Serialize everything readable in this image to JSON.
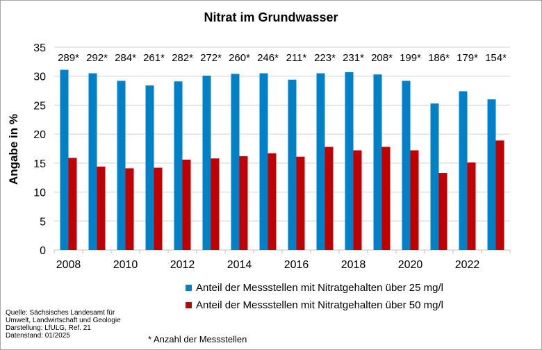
{
  "chart_data": {
    "type": "bar",
    "title": "Nitrat im Grundwasser",
    "ylabel": "Angabe in %",
    "xlabel": "",
    "ylim": [
      0,
      35
    ],
    "yticks": [
      0,
      5,
      10,
      15,
      20,
      25,
      30,
      35
    ],
    "grid": true,
    "legend_position": "bottom",
    "categories": [
      "2008",
      "2009",
      "2010",
      "2011",
      "2012",
      "2013",
      "2014",
      "2015",
      "2016",
      "2017",
      "2018",
      "2019",
      "2020",
      "2021",
      "2022",
      "2023"
    ],
    "xtick_labels": [
      "2008",
      "",
      "2010",
      "",
      "2012",
      "",
      "2014",
      "",
      "2016",
      "",
      "2018",
      "",
      "2020",
      "",
      "2022",
      ""
    ],
    "counts": [
      "289*",
      "292*",
      "284*",
      "261*",
      "282*",
      "272*",
      "260*",
      "246*",
      "211*",
      "223*",
      "231*",
      "208*",
      "199*",
      "186*",
      "179*",
      "154*"
    ],
    "series": [
      {
        "name": "Anteil der Messstellen mit Nitratgehalten über 25 mg/l",
        "color": "#0080c6",
        "values": [
          31.1,
          30.5,
          29.2,
          28.4,
          29.1,
          30.1,
          30.4,
          30.5,
          29.4,
          30.5,
          30.7,
          30.3,
          29.2,
          25.3,
          27.4,
          26.0
        ]
      },
      {
        "name": "Anteil der Messstellen mit Nitratgehalten über 50 mg/l",
        "color": "#c00000",
        "values": [
          15.9,
          14.4,
          14.1,
          14.2,
          15.6,
          15.8,
          16.2,
          16.7,
          16.1,
          17.8,
          17.2,
          17.8,
          17.2,
          13.3,
          15.1,
          18.9
        ]
      }
    ]
  },
  "source": {
    "line1": "Quelle: Sächsisches Landesamt für",
    "line2": "Umwelt, Landwirtschaft und Geologie",
    "line3": "Darstellung: LfULG, Ref. 21",
    "line4": "Datenstand: 01/2025"
  },
  "footnote": "* Anzahl der Messstellen"
}
